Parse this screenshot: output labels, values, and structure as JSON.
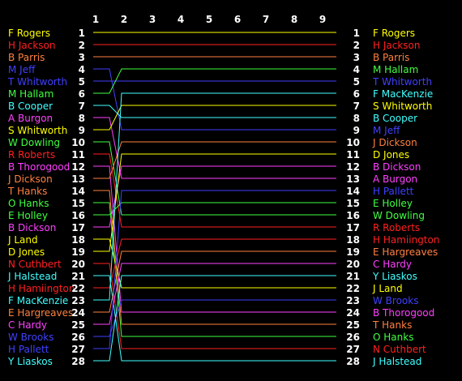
{
  "chart_data": {
    "type": "line",
    "x": [
      "1",
      "2",
      "3",
      "4",
      "5",
      "6",
      "7",
      "8",
      "9"
    ],
    "colors": {
      "yellow": "#ffff00",
      "red": "#ff2020",
      "orange": "#ff8040",
      "blue": "#4040ff",
      "green": "#40ff40",
      "cyan": "#40ffff",
      "magenta": "#ff40ff"
    },
    "start": [
      {
        "pos": 1,
        "name": "F Rogers",
        "color": "yellow"
      },
      {
        "pos": 2,
        "name": "H Jackson",
        "color": "red"
      },
      {
        "pos": 3,
        "name": "B Parris",
        "color": "orange"
      },
      {
        "pos": 4,
        "name": "M Jeff",
        "color": "blue"
      },
      {
        "pos": 5,
        "name": "T Whitworth",
        "color": "blue"
      },
      {
        "pos": 6,
        "name": "M Hallam",
        "color": "green"
      },
      {
        "pos": 7,
        "name": "B Cooper",
        "color": "cyan"
      },
      {
        "pos": 8,
        "name": "A Burgon",
        "color": "magenta"
      },
      {
        "pos": 9,
        "name": "S Whitworth",
        "color": "yellow"
      },
      {
        "pos": 10,
        "name": "W Dowling",
        "color": "green"
      },
      {
        "pos": 11,
        "name": "R Roberts",
        "color": "red"
      },
      {
        "pos": 12,
        "name": "B Thorogood",
        "color": "magenta"
      },
      {
        "pos": 13,
        "name": "J Dickson",
        "color": "orange"
      },
      {
        "pos": 14,
        "name": "T Hanks",
        "color": "orange"
      },
      {
        "pos": 15,
        "name": "O Hanks",
        "color": "green"
      },
      {
        "pos": 16,
        "name": "E Holley",
        "color": "green"
      },
      {
        "pos": 17,
        "name": "B Dickson",
        "color": "magenta"
      },
      {
        "pos": 18,
        "name": "J Land",
        "color": "yellow"
      },
      {
        "pos": 19,
        "name": "D Jones",
        "color": "yellow"
      },
      {
        "pos": 20,
        "name": "N Cuthbert",
        "color": "red"
      },
      {
        "pos": 21,
        "name": "J Halstead",
        "color": "cyan"
      },
      {
        "pos": 22,
        "name": "H Hamiington",
        "color": "red"
      },
      {
        "pos": 23,
        "name": "F MacKenzie",
        "color": "cyan"
      },
      {
        "pos": 24,
        "name": "E Hargreaves",
        "color": "orange"
      },
      {
        "pos": 25,
        "name": "C Hardy",
        "color": "magenta"
      },
      {
        "pos": 26,
        "name": "W Brooks",
        "color": "blue"
      },
      {
        "pos": 27,
        "name": "H Pallett",
        "color": "blue"
      },
      {
        "pos": 28,
        "name": "Y Liaskos",
        "color": "cyan"
      }
    ],
    "end": [
      {
        "pos": 1,
        "name": "F Rogers",
        "color": "yellow"
      },
      {
        "pos": 2,
        "name": "H Jackson",
        "color": "red"
      },
      {
        "pos": 3,
        "name": "B Parris",
        "color": "orange"
      },
      {
        "pos": 4,
        "name": "M Hallam",
        "color": "green"
      },
      {
        "pos": 5,
        "name": "T Whitworth",
        "color": "blue"
      },
      {
        "pos": 6,
        "name": "F MacKenzie",
        "color": "cyan"
      },
      {
        "pos": 7,
        "name": "S Whitworth",
        "color": "yellow"
      },
      {
        "pos": 8,
        "name": "B Cooper",
        "color": "cyan"
      },
      {
        "pos": 9,
        "name": "M Jeff",
        "color": "blue"
      },
      {
        "pos": 10,
        "name": "J Dickson",
        "color": "orange"
      },
      {
        "pos": 11,
        "name": "D Jones",
        "color": "yellow"
      },
      {
        "pos": 12,
        "name": "B Dickson",
        "color": "magenta"
      },
      {
        "pos": 13,
        "name": "A Burgon",
        "color": "magenta"
      },
      {
        "pos": 14,
        "name": "H Pallett",
        "color": "blue"
      },
      {
        "pos": 15,
        "name": "E Holley",
        "color": "green"
      },
      {
        "pos": 16,
        "name": "W Dowling",
        "color": "green"
      },
      {
        "pos": 17,
        "name": "R Roberts",
        "color": "red"
      },
      {
        "pos": 18,
        "name": "H Hamiington",
        "color": "red"
      },
      {
        "pos": 19,
        "name": "E Hargreaves",
        "color": "orange"
      },
      {
        "pos": 20,
        "name": "C Hardy",
        "color": "magenta"
      },
      {
        "pos": 21,
        "name": "Y Liaskos",
        "color": "cyan"
      },
      {
        "pos": 22,
        "name": "J Land",
        "color": "yellow"
      },
      {
        "pos": 23,
        "name": "W Brooks",
        "color": "blue"
      },
      {
        "pos": 24,
        "name": "B Thorogood",
        "color": "magenta"
      },
      {
        "pos": 25,
        "name": "T Hanks",
        "color": "orange"
      },
      {
        "pos": 26,
        "name": "O Hanks",
        "color": "green"
      },
      {
        "pos": 27,
        "name": "N Cuthbert",
        "color": "red"
      },
      {
        "pos": 28,
        "name": "J Halstead",
        "color": "cyan"
      }
    ]
  }
}
